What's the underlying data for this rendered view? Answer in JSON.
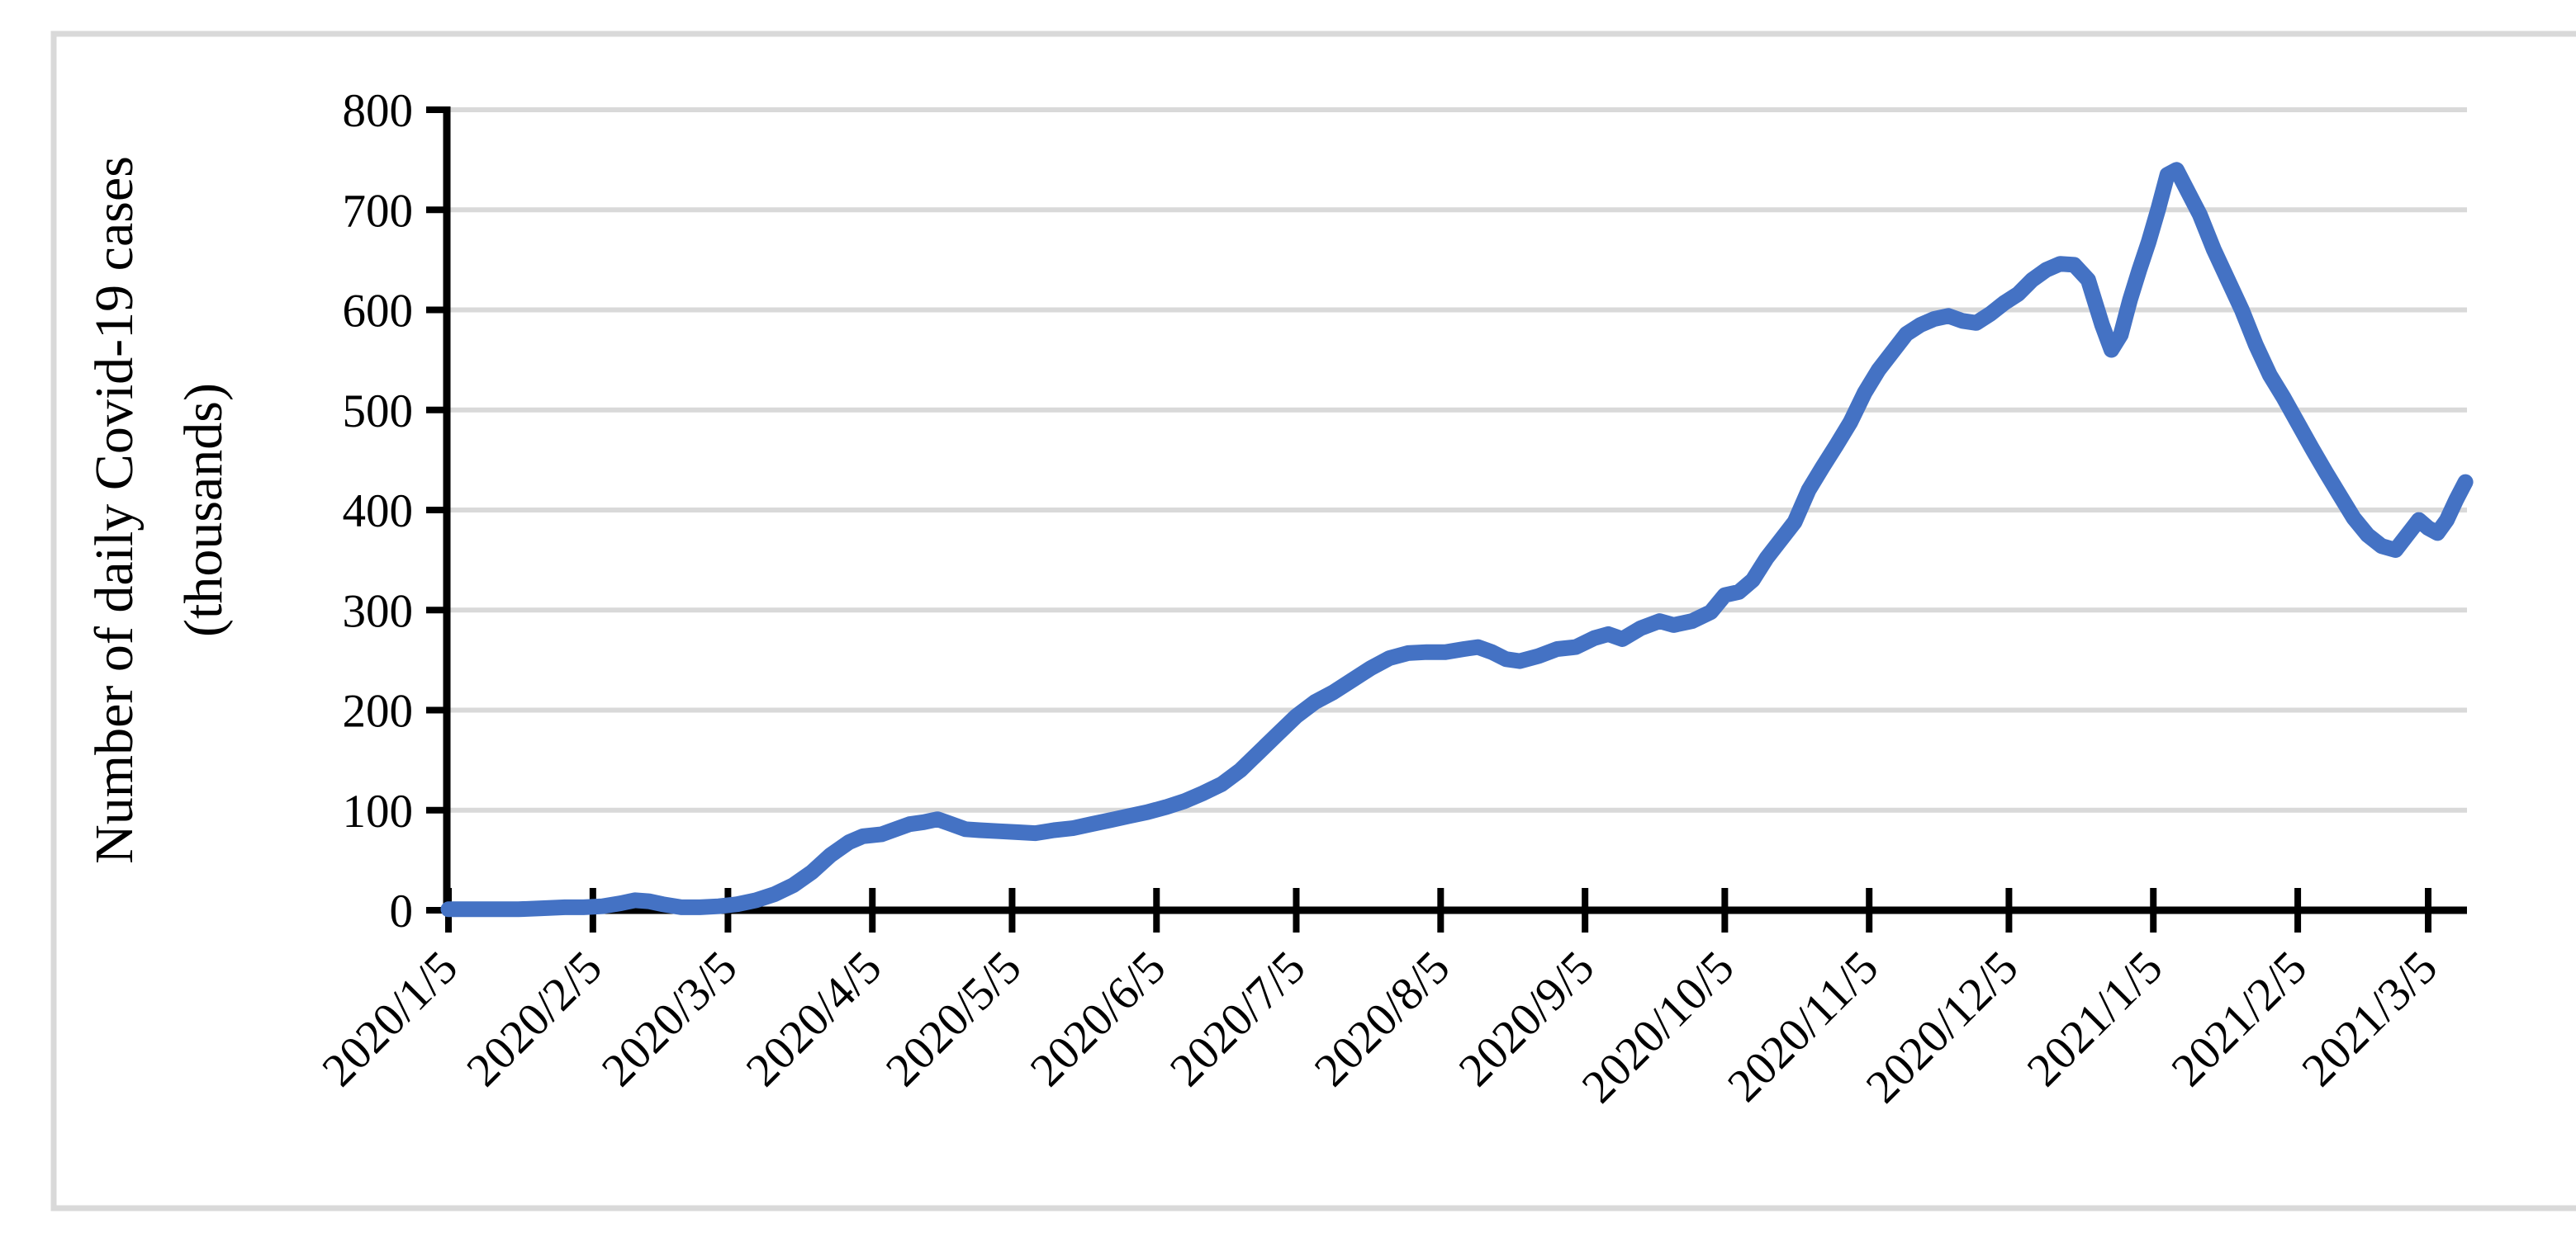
{
  "figure": {
    "background": "#FFFFFF",
    "border_color": "#D9D9D9",
    "text_color": "#000000"
  },
  "chart_data": {
    "type": "line",
    "title": "",
    "ylabel_line1": "Number of daily Covid-19 cases",
    "ylabel_line2": "(thousands)",
    "xlabel": "",
    "ylim": [
      0,
      800
    ],
    "y_tick_interval": 100,
    "y_tick_labels": [
      "0",
      "100",
      "200",
      "300",
      "400",
      "500",
      "600",
      "700",
      "800"
    ],
    "x_tick_labels": [
      "2020/1/5",
      "2020/2/5",
      "2020/3/5",
      "2020/4/5",
      "2020/5/5",
      "2020/6/5",
      "2020/7/5",
      "2020/8/5",
      "2020/9/5",
      "2020/10/5",
      "2020/11/5",
      "2020/12/5",
      "2021/1/5",
      "2021/2/5",
      "2021/3/5"
    ],
    "x_range": [
      "2020/1/5",
      "2021/3/13"
    ],
    "grid": "horizontal-only",
    "legend": "none",
    "line_color": "#4472C4",
    "gridline_color": "#D9D9D9",
    "axis_color": "#000000",
    "series": [
      {
        "name": "Daily Covid-19 cases (thousands)",
        "points": [
          [
            "2020/1/5",
            1
          ],
          [
            "2020/1/10",
            1
          ],
          [
            "2020/1/15",
            1
          ],
          [
            "2020/1/20",
            1
          ],
          [
            "2020/1/25",
            2
          ],
          [
            "2020/1/30",
            3
          ],
          [
            "2020/2/3",
            3
          ],
          [
            "2020/2/7",
            4
          ],
          [
            "2020/2/11",
            7
          ],
          [
            "2020/2/14",
            10
          ],
          [
            "2020/2/17",
            9
          ],
          [
            "2020/2/20",
            6
          ],
          [
            "2020/2/24",
            3
          ],
          [
            "2020/2/28",
            3
          ],
          [
            "2020/3/3",
            4
          ],
          [
            "2020/3/7",
            6
          ],
          [
            "2020/3/11",
            10
          ],
          [
            "2020/3/15",
            16
          ],
          [
            "2020/3/19",
            25
          ],
          [
            "2020/3/23",
            38
          ],
          [
            "2020/3/27",
            55
          ],
          [
            "2020/3/31",
            68
          ],
          [
            "2020/4/3",
            74
          ],
          [
            "2020/4/7",
            76
          ],
          [
            "2020/4/10",
            81
          ],
          [
            "2020/4/13",
            86
          ],
          [
            "2020/4/16",
            88
          ],
          [
            "2020/4/19",
            91
          ],
          [
            "2020/4/22",
            86
          ],
          [
            "2020/4/25",
            81
          ],
          [
            "2020/4/28",
            80
          ],
          [
            "2020/5/2",
            79
          ],
          [
            "2020/5/6",
            78
          ],
          [
            "2020/5/10",
            77
          ],
          [
            "2020/5/14",
            80
          ],
          [
            "2020/5/18",
            82
          ],
          [
            "2020/5/22",
            86
          ],
          [
            "2020/5/26",
            90
          ],
          [
            "2020/5/30",
            94
          ],
          [
            "2020/6/3",
            98
          ],
          [
            "2020/6/7",
            103
          ],
          [
            "2020/6/11",
            109
          ],
          [
            "2020/6/15",
            117
          ],
          [
            "2020/6/19",
            126
          ],
          [
            "2020/6/23",
            140
          ],
          [
            "2020/6/27",
            158
          ],
          [
            "2020/7/1",
            176
          ],
          [
            "2020/7/5",
            194
          ],
          [
            "2020/7/9",
            208
          ],
          [
            "2020/7/13",
            218
          ],
          [
            "2020/7/17",
            230
          ],
          [
            "2020/7/21",
            242
          ],
          [
            "2020/7/25",
            252
          ],
          [
            "2020/7/29",
            257
          ],
          [
            "2020/8/2",
            258
          ],
          [
            "2020/8/6",
            258
          ],
          [
            "2020/8/10",
            261
          ],
          [
            "2020/8/13",
            263
          ],
          [
            "2020/8/16",
            258
          ],
          [
            "2020/8/19",
            251
          ],
          [
            "2020/8/22",
            249
          ],
          [
            "2020/8/26",
            254
          ],
          [
            "2020/8/30",
            261
          ],
          [
            "2020/9/3",
            263
          ],
          [
            "2020/9/7",
            272
          ],
          [
            "2020/9/10",
            276
          ],
          [
            "2020/9/13",
            271
          ],
          [
            "2020/9/17",
            282
          ],
          [
            "2020/9/21",
            289
          ],
          [
            "2020/9/24",
            285
          ],
          [
            "2020/9/28",
            289
          ],
          [
            "2020/10/2",
            298
          ],
          [
            "2020/10/5",
            315
          ],
          [
            "2020/10/8",
            318
          ],
          [
            "2020/10/11",
            330
          ],
          [
            "2020/10/14",
            352
          ],
          [
            "2020/10/17",
            370
          ],
          [
            "2020/10/20",
            388
          ],
          [
            "2020/10/23",
            420
          ],
          [
            "2020/10/26",
            443
          ],
          [
            "2020/10/29",
            465
          ],
          [
            "2020/11/1",
            488
          ],
          [
            "2020/11/4",
            517
          ],
          [
            "2020/11/7",
            540
          ],
          [
            "2020/11/10",
            558
          ],
          [
            "2020/11/13",
            576
          ],
          [
            "2020/11/16",
            585
          ],
          [
            "2020/11/19",
            591
          ],
          [
            "2020/11/22",
            594
          ],
          [
            "2020/11/25",
            589
          ],
          [
            "2020/11/28",
            587
          ],
          [
            "2020/12/1",
            596
          ],
          [
            "2020/12/4",
            607
          ],
          [
            "2020/12/7",
            616
          ],
          [
            "2020/12/10",
            630
          ],
          [
            "2020/12/13",
            640
          ],
          [
            "2020/12/16",
            646
          ],
          [
            "2020/12/19",
            645
          ],
          [
            "2020/12/22",
            630
          ],
          [
            "2020/12/25",
            585
          ],
          [
            "2020/12/27",
            560
          ],
          [
            "2020/12/29",
            575
          ],
          [
            "2020/12/31",
            610
          ],
          [
            "2021/1/2",
            640
          ],
          [
            "2021/1/4",
            668
          ],
          [
            "2021/1/6",
            700
          ],
          [
            "2021/1/8",
            735
          ],
          [
            "2021/1/10",
            740
          ],
          [
            "2021/1/12",
            722
          ],
          [
            "2021/1/15",
            695
          ],
          [
            "2021/1/18",
            660
          ],
          [
            "2021/1/21",
            630
          ],
          [
            "2021/1/24",
            600
          ],
          [
            "2021/1/27",
            565
          ],
          [
            "2021/1/30",
            535
          ],
          [
            "2021/2/2",
            512
          ],
          [
            "2021/2/5",
            487
          ],
          [
            "2021/2/8",
            462
          ],
          [
            "2021/2/11",
            438
          ],
          [
            "2021/2/14",
            415
          ],
          [
            "2021/2/17",
            392
          ],
          [
            "2021/2/20",
            375
          ],
          [
            "2021/2/23",
            364
          ],
          [
            "2021/2/26",
            360
          ],
          [
            "2021/3/1",
            378
          ],
          [
            "2021/3/3",
            390
          ],
          [
            "2021/3/5",
            382
          ],
          [
            "2021/3/7",
            377
          ],
          [
            "2021/3/9",
            390
          ],
          [
            "2021/3/11",
            410
          ],
          [
            "2021/3/13",
            428
          ]
        ]
      }
    ]
  }
}
